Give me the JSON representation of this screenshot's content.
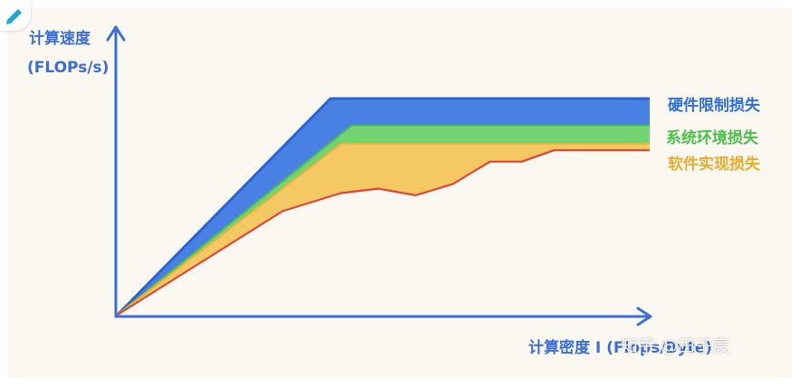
{
  "chart_data": {
    "type": "area",
    "ylabel_line1": "计算速度",
    "ylabel_line2": "(FLOPs/s)",
    "xlabel": "计算密度 I (Flops/Byte)",
    "x_range": [
      0,
      10
    ],
    "y_range": [
      0,
      10
    ],
    "series": [
      {
        "name": "硬件限制损失",
        "color": "#2f6fe0",
        "line": [
          [
            0,
            0
          ],
          [
            4.0,
            9.6
          ],
          [
            10,
            9.6
          ]
        ]
      },
      {
        "name": "系统环境损失",
        "color": "#5fcf5f",
        "line": [
          [
            0,
            0
          ],
          [
            4.4,
            8.4
          ],
          [
            10,
            8.4
          ]
        ]
      },
      {
        "name": "软件实现损失",
        "color": "#f2c14e",
        "line": [
          [
            0,
            0
          ],
          [
            4.2,
            7.6
          ],
          [
            10,
            7.6
          ]
        ]
      }
    ],
    "achieved_line": {
      "color": "#e0453a",
      "points": [
        [
          0,
          0
        ],
        [
          3.1,
          4.6
        ],
        [
          4.2,
          5.4
        ],
        [
          4.9,
          5.6
        ],
        [
          5.6,
          5.3
        ],
        [
          6.3,
          5.8
        ],
        [
          7.0,
          6.8
        ],
        [
          7.6,
          6.8
        ],
        [
          8.2,
          7.3
        ],
        [
          8.8,
          7.3
        ],
        [
          10,
          7.3
        ]
      ]
    },
    "grid": false,
    "legend": "right, inline at line ends"
  },
  "watermark": "知乎 @田子宸"
}
